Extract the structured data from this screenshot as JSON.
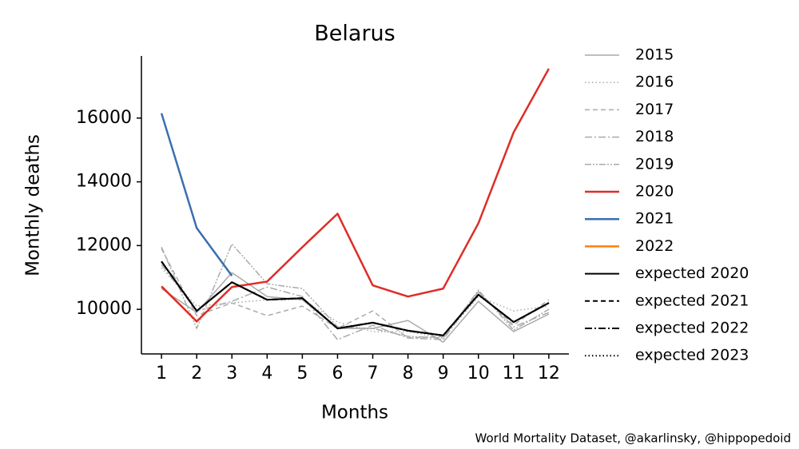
{
  "chart_data": {
    "type": "line",
    "title": "Belarus",
    "xlabel": "Months",
    "ylabel": "Monthly deaths",
    "annotation": "World Mortality Dataset, @akarlinsky, @hippopedoid",
    "x": [
      1,
      2,
      3,
      4,
      5,
      6,
      7,
      8,
      9,
      10,
      11,
      12
    ],
    "xlim": [
      0.43,
      12.57
    ],
    "xticks": [
      1,
      2,
      3,
      4,
      5,
      6,
      7,
      8,
      9,
      10,
      11,
      12
    ],
    "ylim": [
      8600,
      17950
    ],
    "yticks": [
      10000,
      12000,
      14000,
      16000
    ],
    "legend": "right",
    "series": [
      {
        "name": "2015",
        "color": "#aaaaaa",
        "dash": "solid",
        "values": [
          10650,
          9900,
          11150,
          10400,
          10300,
          9400,
          9400,
          9650,
          8970,
          10250,
          9300,
          9850
        ]
      },
      {
        "name": "2016",
        "color": "#aaaaaa",
        "dash": "dotted",
        "values": [
          11300,
          10100,
          10200,
          10300,
          10300,
          9600,
          9300,
          9300,
          9100,
          10400,
          9950,
          10100
        ]
      },
      {
        "name": "2017",
        "color": "#aaaaaa",
        "dash": "dashed",
        "values": [
          11900,
          9800,
          10200,
          9800,
          10100,
          9400,
          9950,
          9100,
          9150,
          10550,
          9500,
          10300
        ]
      },
      {
        "name": "2018",
        "color": "#aaaaaa",
        "dash": "dashdot",
        "values": [
          11400,
          9950,
          10250,
          10700,
          10400,
          9050,
          9500,
          9100,
          9050,
          10550,
          9450,
          9900
        ]
      },
      {
        "name": "2019",
        "color": "#aaaaaa",
        "dash": "dashdotdot",
        "values": [
          11950,
          9400,
          12050,
          10800,
          10650,
          9450,
          9400,
          9150,
          9100,
          10600,
          9350,
          10000
        ]
      },
      {
        "name": "2020",
        "color": "#de2d26",
        "dash": "solid",
        "values": [
          10720,
          9620,
          10700,
          10870,
          11950,
          13000,
          10750,
          10400,
          10650,
          12700,
          15550,
          17550
        ]
      },
      {
        "name": "2021",
        "color": "#3a6fb0",
        "dash": "solid",
        "values": [
          16150,
          12550,
          11050,
          null,
          null,
          null,
          null,
          null,
          null,
          null,
          null,
          null
        ]
      },
      {
        "name": "2022",
        "color": "#ff7f0e",
        "dash": "solid",
        "values": [
          null,
          null,
          null,
          null,
          null,
          null,
          null,
          null,
          null,
          null,
          null,
          null
        ]
      },
      {
        "name": "expected 2020",
        "color": "#000000",
        "dash": "solid",
        "values": [
          11500,
          9950,
          10850,
          10300,
          10350,
          9400,
          9580,
          9330,
          9180,
          10460,
          9600,
          10200
        ]
      },
      {
        "name": "expected 2021",
        "color": "#000000",
        "dash": "dashed",
        "values": [
          11500,
          9950,
          10850,
          10300,
          10350,
          9400,
          9580,
          9330,
          9180,
          10460,
          9600,
          10200
        ]
      },
      {
        "name": "expected 2022",
        "color": "#000000",
        "dash": "dashdot",
        "values": [
          11500,
          9950,
          10850,
          10300,
          10350,
          9400,
          9580,
          9330,
          9180,
          10460,
          9600,
          10200
        ]
      },
      {
        "name": "expected 2023",
        "color": "#000000",
        "dash": "dotted",
        "values": [
          11500,
          9950,
          10850,
          10300,
          10350,
          9400,
          9580,
          9330,
          9180,
          10460,
          9600,
          10200
        ]
      }
    ]
  }
}
